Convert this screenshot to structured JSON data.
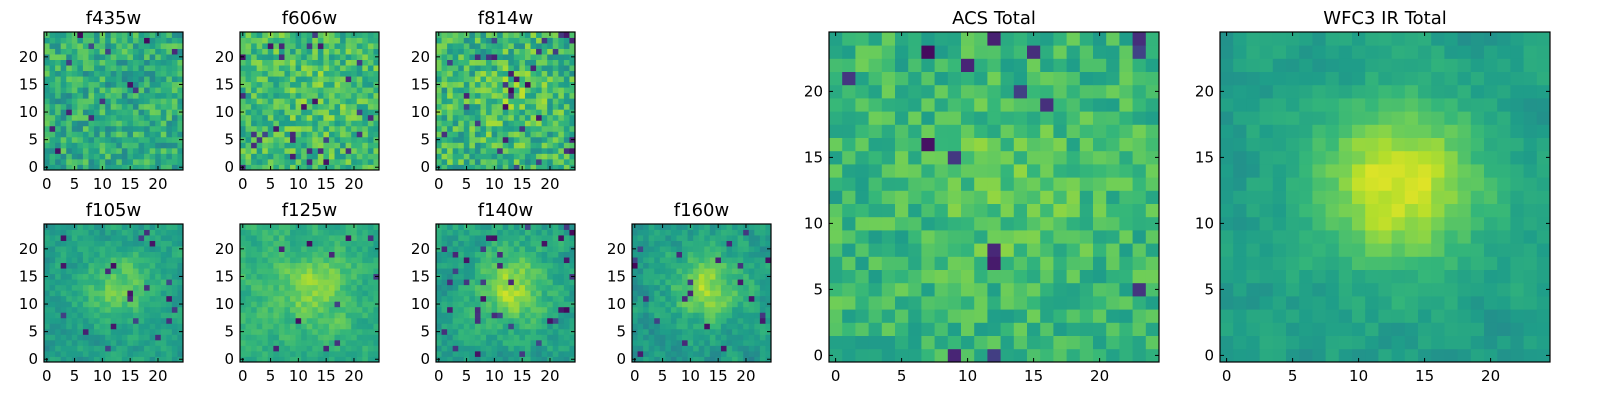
{
  "chart_data": [
    {
      "type": "heatmap",
      "title": "f435w",
      "colormap": "viridis",
      "grid_size": 25,
      "xticks": [
        "0",
        "5",
        "10",
        "15",
        "20"
      ],
      "yticks": [
        "0",
        "5",
        "10",
        "15",
        "20"
      ],
      "texture": "noise",
      "mean_level": 0.62,
      "spread": 0.16,
      "dark_fraction": 0.03,
      "center_peak": 0.0,
      "seed": 11
    },
    {
      "type": "heatmap",
      "title": "f606w",
      "colormap": "viridis",
      "grid_size": 25,
      "xticks": [
        "0",
        "5",
        "10",
        "15",
        "20"
      ],
      "yticks": [
        "0",
        "5",
        "10",
        "15",
        "20"
      ],
      "texture": "noise",
      "mean_level": 0.68,
      "spread": 0.16,
      "dark_fraction": 0.04,
      "center_peak": 0.05,
      "seed": 23
    },
    {
      "type": "heatmap",
      "title": "f814w",
      "colormap": "viridis",
      "grid_size": 25,
      "xticks": [
        "0",
        "5",
        "10",
        "15",
        "20"
      ],
      "yticks": [
        "0",
        "5",
        "10",
        "15",
        "20"
      ],
      "texture": "noise",
      "mean_level": 0.66,
      "spread": 0.18,
      "dark_fraction": 0.05,
      "center_peak": 0.08,
      "seed": 37
    },
    {
      "type": "heatmap",
      "title": "f105w",
      "colormap": "viridis",
      "grid_size": 25,
      "xticks": [
        "0",
        "5",
        "10",
        "15",
        "20"
      ],
      "yticks": [
        "0",
        "5",
        "10",
        "15",
        "20"
      ],
      "texture": "smooth",
      "mean_level": 0.56,
      "spread": 0.14,
      "dark_fraction": 0.03,
      "center_peak": 0.22,
      "seed": 41
    },
    {
      "type": "heatmap",
      "title": "f125w",
      "colormap": "viridis",
      "grid_size": 25,
      "xticks": [
        "0",
        "5",
        "10",
        "15",
        "20"
      ],
      "yticks": [
        "0",
        "5",
        "10",
        "15",
        "20"
      ],
      "texture": "smooth",
      "mean_level": 0.64,
      "spread": 0.13,
      "dark_fraction": 0.02,
      "center_peak": 0.18,
      "seed": 53
    },
    {
      "type": "heatmap",
      "title": "f140w",
      "colormap": "viridis",
      "grid_size": 25,
      "xticks": [
        "0",
        "5",
        "10",
        "15",
        "20"
      ],
      "yticks": [
        "0",
        "5",
        "10",
        "15",
        "20"
      ],
      "texture": "smooth",
      "mean_level": 0.58,
      "spread": 0.15,
      "dark_fraction": 0.04,
      "center_peak": 0.28,
      "seed": 67
    },
    {
      "type": "heatmap",
      "title": "f160w",
      "colormap": "viridis",
      "grid_size": 25,
      "xticks": [
        "0",
        "5",
        "10",
        "15",
        "20"
      ],
      "yticks": [
        "0",
        "5",
        "10",
        "15",
        "20"
      ],
      "texture": "smooth",
      "mean_level": 0.55,
      "spread": 0.15,
      "dark_fraction": 0.05,
      "center_peak": 0.3,
      "seed": 79
    },
    {
      "type": "heatmap",
      "title": "ACS Total",
      "colormap": "viridis",
      "grid_size": 25,
      "xticks": [
        "0",
        "5",
        "10",
        "15",
        "20"
      ],
      "yticks": [
        "0",
        "5",
        "10",
        "15",
        "20"
      ],
      "texture": "noise",
      "mean_level": 0.66,
      "spread": 0.12,
      "dark_fraction": 0.03,
      "center_peak": 0.08,
      "seed": 97
    },
    {
      "type": "heatmap",
      "title": "WFC3 IR Total",
      "colormap": "viridis",
      "grid_size": 25,
      "xticks": [
        "0",
        "5",
        "10",
        "15",
        "20"
      ],
      "yticks": [
        "0",
        "5",
        "10",
        "15",
        "20"
      ],
      "texture": "smooth",
      "mean_level": 0.56,
      "spread": 0.1,
      "dark_fraction": 0.0,
      "center_peak": 0.38,
      "seed": 113
    }
  ]
}
